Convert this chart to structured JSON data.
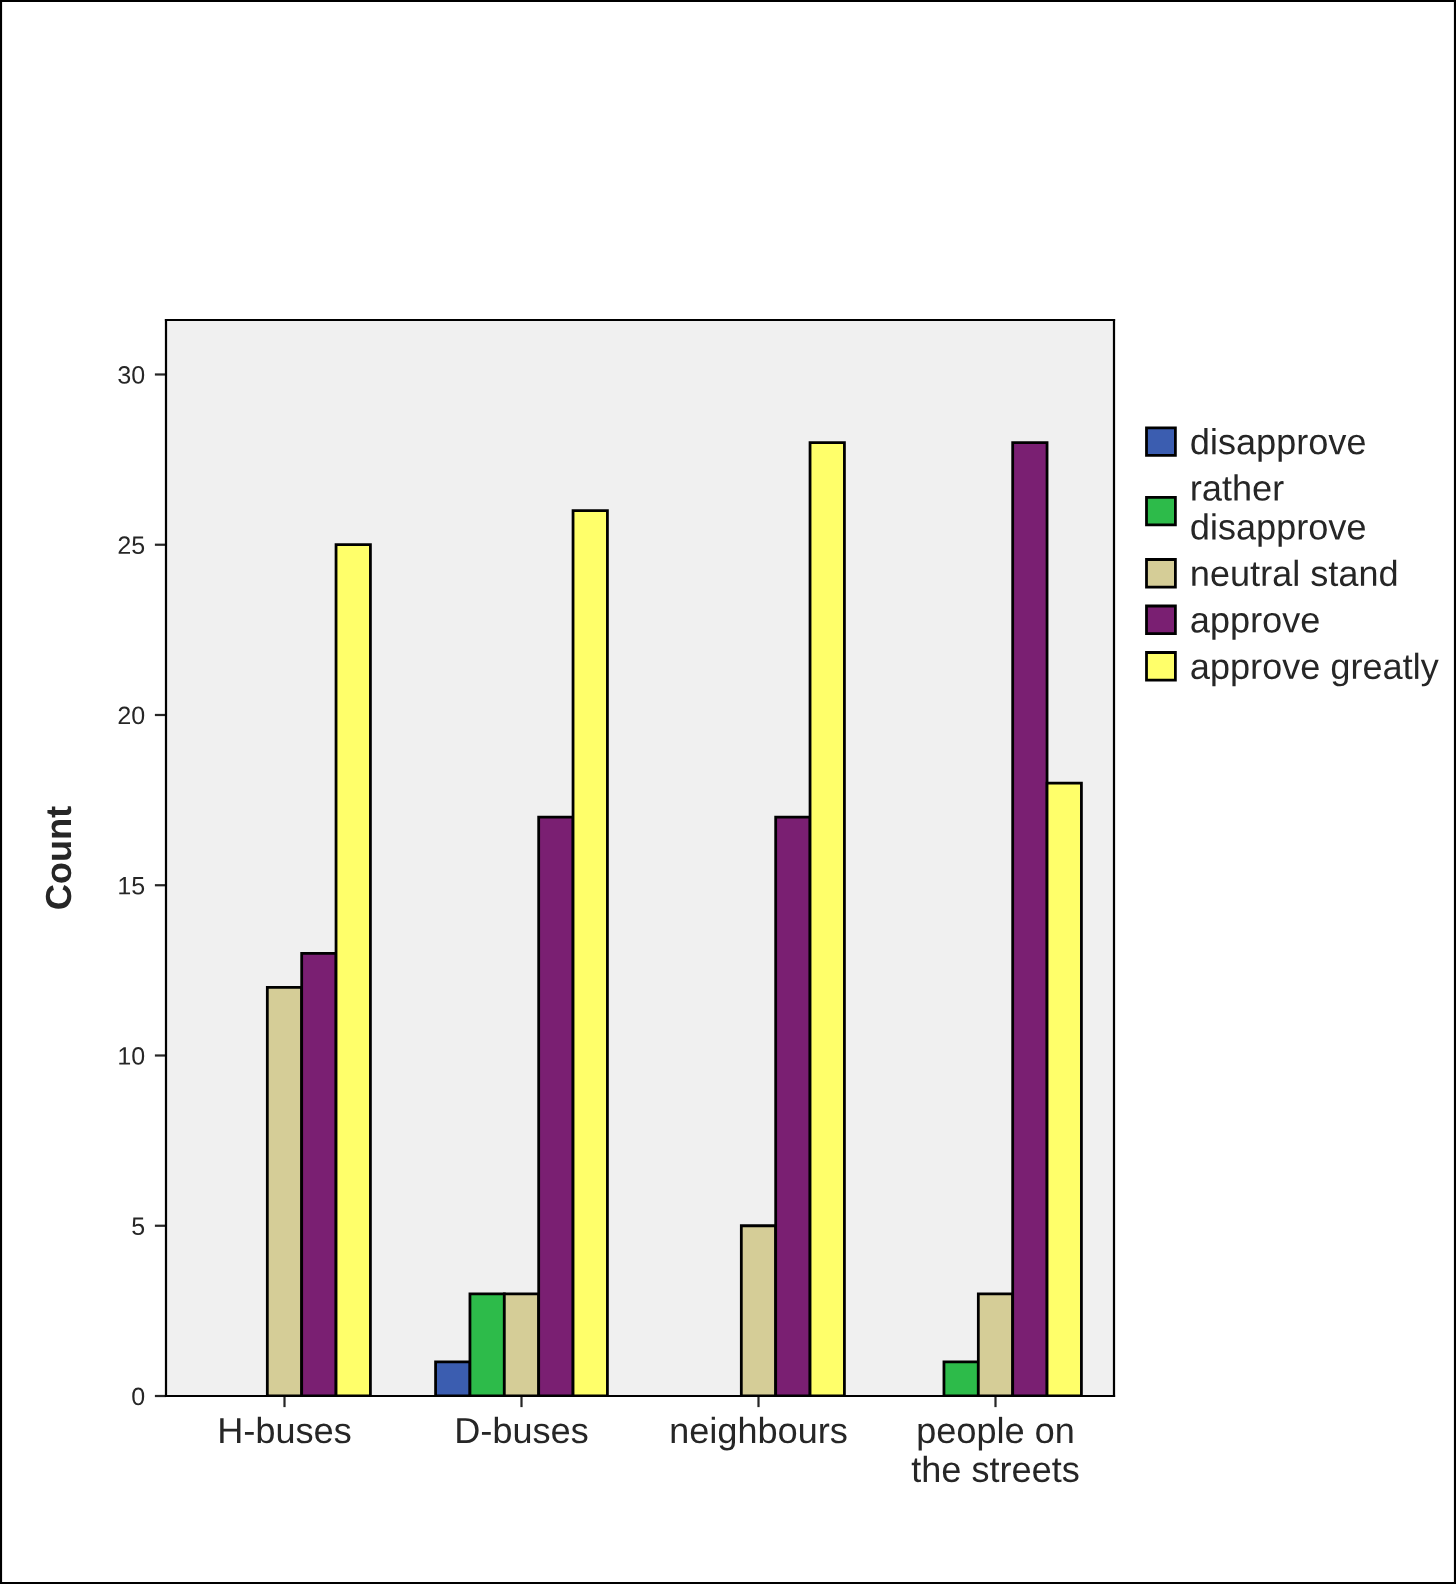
{
  "chart_data": {
    "type": "bar",
    "ylabel": "Count",
    "categories": [
      "H-buses",
      "D-buses",
      "neighbours",
      "people on\nthe streets"
    ],
    "series": [
      {
        "name": "disapprove",
        "color": "#3b5db0",
        "values": [
          null,
          1,
          null,
          null
        ]
      },
      {
        "name": "rather\ndisapprove",
        "color": "#2dbb4a",
        "values": [
          null,
          3,
          null,
          1
        ]
      },
      {
        "name": "neutral stand",
        "color": "#d5cd97",
        "values": [
          12,
          3,
          5,
          3
        ]
      },
      {
        "name": "approve",
        "color": "#7a1f72",
        "values": [
          13,
          17,
          17,
          28
        ]
      },
      {
        "name": "approve greatly",
        "color": "#ffff6a",
        "values": [
          25,
          26,
          28,
          18
        ]
      }
    ],
    "ylim": [
      0,
      31.6
    ],
    "yticks": [
      0,
      5,
      10,
      15,
      20,
      25,
      30
    ],
    "grid": false,
    "legend": "right"
  }
}
